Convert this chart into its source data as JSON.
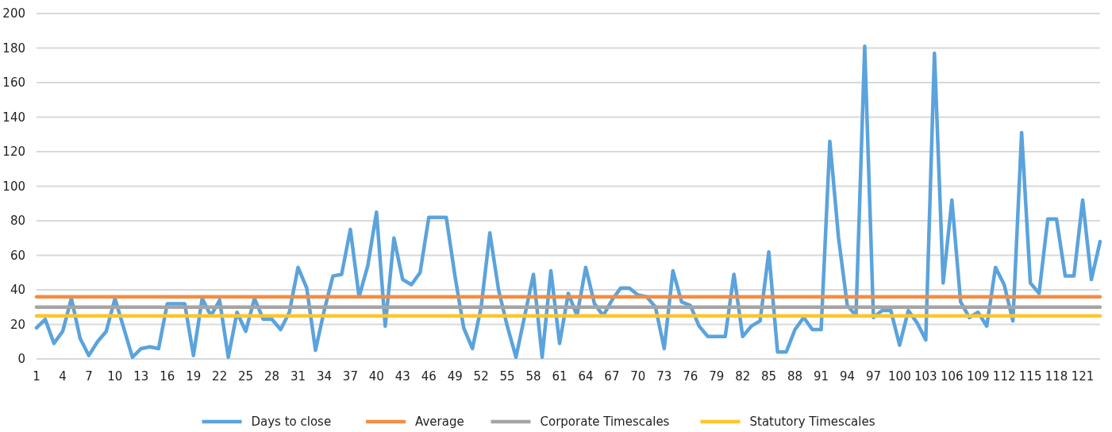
{
  "chart_data": {
    "type": "line",
    "categories": [
      "1",
      null,
      null,
      "4",
      null,
      null,
      "7",
      null,
      null,
      "10",
      null,
      null,
      "13",
      null,
      null,
      "16",
      null,
      null,
      "19",
      null,
      null,
      "22",
      null,
      null,
      "25",
      null,
      null,
      "28",
      null,
      null,
      "31",
      null,
      null,
      "34",
      null,
      null,
      "37",
      null,
      null,
      "40",
      null,
      null,
      "43",
      null,
      null,
      "46",
      null,
      null,
      "49",
      null,
      null,
      "52",
      null,
      null,
      "55",
      null,
      null,
      "58",
      null,
      null,
      "61",
      null,
      null,
      "64",
      null,
      null,
      "67",
      null,
      null,
      "70",
      null,
      null,
      "73",
      null,
      null,
      "76",
      null,
      null,
      "79",
      null,
      null,
      "82",
      null,
      null,
      "85",
      null,
      null,
      "88",
      null,
      null,
      "91",
      null,
      null,
      "94",
      null,
      null,
      "97",
      null,
      null,
      "100",
      null,
      null,
      "103",
      null,
      null,
      "106",
      null,
      null,
      "109",
      null,
      null,
      "112",
      null,
      null,
      "115",
      null,
      null,
      "118",
      null,
      null,
      "121",
      null,
      null
    ],
    "series": [
      {
        "name": "Days to close",
        "color": "#5ba3dc",
        "values": [
          18,
          23,
          9,
          16,
          35,
          12,
          2,
          10,
          16,
          35,
          18,
          1,
          6,
          7,
          6,
          32,
          32,
          32,
          2,
          35,
          25,
          34,
          1,
          27,
          16,
          35,
          23,
          23,
          17,
          27,
          53,
          41,
          5,
          28,
          48,
          49,
          75,
          36,
          54,
          85,
          19,
          70,
          46,
          43,
          50,
          82,
          82,
          82,
          48,
          18,
          6,
          30,
          73,
          40,
          19,
          1,
          25,
          49,
          1,
          51,
          9,
          38,
          25,
          53,
          32,
          25,
          34,
          41,
          41,
          37,
          36,
          30,
          6,
          51,
          33,
          31,
          19,
          13,
          13,
          13,
          49,
          13,
          19,
          22,
          62,
          4,
          4,
          17,
          24,
          17,
          17,
          126,
          70,
          31,
          25,
          181,
          24,
          28,
          28,
          8,
          28,
          21,
          11,
          177,
          44,
          92,
          33,
          24,
          27,
          19,
          53,
          43,
          22,
          131,
          44,
          38,
          81,
          81,
          48,
          48,
          92,
          46,
          68
        ]
      },
      {
        "name": "Average",
        "color": "#f28e43",
        "values": [
          36,
          36,
          36,
          36,
          36,
          36,
          36,
          36,
          36,
          36,
          36,
          36,
          36,
          36,
          36,
          36,
          36,
          36,
          36,
          36,
          36,
          36,
          36,
          36,
          36,
          36,
          36,
          36,
          36,
          36,
          36,
          36,
          36,
          36,
          36,
          36,
          36,
          36,
          36,
          36,
          36,
          36,
          36,
          36,
          36,
          36,
          36,
          36,
          36,
          36,
          36,
          36,
          36,
          36,
          36,
          36,
          36,
          36,
          36,
          36,
          36,
          36,
          36,
          36,
          36,
          36,
          36,
          36,
          36,
          36,
          36,
          36,
          36,
          36,
          36,
          36,
          36,
          36,
          36,
          36,
          36,
          36,
          36,
          36,
          36,
          36,
          36,
          36,
          36,
          36,
          36,
          36,
          36,
          36,
          36,
          36,
          36,
          36,
          36,
          36,
          36,
          36,
          36,
          36,
          36,
          36,
          36,
          36,
          36,
          36,
          36,
          36,
          36,
          36,
          36,
          36,
          36,
          36,
          36,
          36,
          36,
          36,
          36
        ]
      },
      {
        "name": "Corporate Timescales",
        "color": "#a5a5a5",
        "values": [
          30,
          30,
          30,
          30,
          30,
          30,
          30,
          30,
          30,
          30,
          30,
          30,
          30,
          30,
          30,
          30,
          30,
          30,
          30,
          30,
          30,
          30,
          30,
          30,
          30,
          30,
          30,
          30,
          30,
          30,
          30,
          30,
          30,
          30,
          30,
          30,
          30,
          30,
          30,
          30,
          30,
          30,
          30,
          30,
          30,
          30,
          30,
          30,
          30,
          30,
          30,
          30,
          30,
          30,
          30,
          30,
          30,
          30,
          30,
          30,
          30,
          30,
          30,
          30,
          30,
          30,
          30,
          30,
          30,
          30,
          30,
          30,
          30,
          30,
          30,
          30,
          30,
          30,
          30,
          30,
          30,
          30,
          30,
          30,
          30,
          30,
          30,
          30,
          30,
          30,
          30,
          30,
          30,
          30,
          30,
          30,
          30,
          30,
          30,
          30,
          30,
          30,
          30,
          30,
          30,
          30,
          30,
          30,
          30,
          30,
          30,
          30,
          30,
          30,
          30,
          30,
          30,
          30,
          30,
          30,
          30,
          30,
          30
        ]
      },
      {
        "name": "Statutory Timescales",
        "color": "#fec52e",
        "values": [
          25,
          25,
          25,
          25,
          25,
          25,
          25,
          25,
          25,
          25,
          25,
          25,
          25,
          25,
          25,
          25,
          25,
          25,
          25,
          25,
          25,
          25,
          25,
          25,
          25,
          25,
          25,
          25,
          25,
          25,
          25,
          25,
          25,
          25,
          25,
          25,
          25,
          25,
          25,
          25,
          25,
          25,
          25,
          25,
          25,
          25,
          25,
          25,
          25,
          25,
          25,
          25,
          25,
          25,
          25,
          25,
          25,
          25,
          25,
          25,
          25,
          25,
          25,
          25,
          25,
          25,
          25,
          25,
          25,
          25,
          25,
          25,
          25,
          25,
          25,
          25,
          25,
          25,
          25,
          25,
          25,
          25,
          25,
          25,
          25,
          25,
          25,
          25,
          25,
          25,
          25,
          25,
          25,
          25,
          25,
          25,
          25,
          25,
          25,
          25,
          25,
          25,
          25,
          25,
          25,
          25,
          25,
          25,
          25,
          25,
          25,
          25,
          25,
          25,
          25,
          25,
          25,
          25,
          25,
          25,
          25,
          25,
          25
        ]
      }
    ],
    "ylim": [
      0,
      200
    ],
    "yticks": [
      0,
      20,
      40,
      60,
      80,
      100,
      120,
      140,
      160,
      180,
      200
    ],
    "grid": "y",
    "legend": "bottom",
    "marker": "none",
    "line_style": "solid"
  }
}
